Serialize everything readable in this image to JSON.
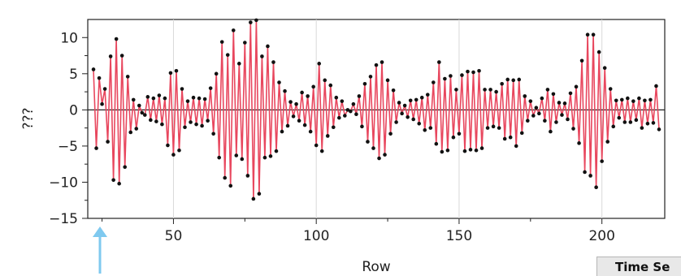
{
  "chart_data": {
    "type": "line",
    "title": "",
    "xlabel": "Row",
    "ylabel": "???",
    "xlim": [
      20,
      222
    ],
    "ylim": [
      -15,
      12.5
    ],
    "xticks": [
      50,
      100,
      150,
      200
    ],
    "yticks": [
      10,
      5,
      0,
      -5,
      -10,
      -15
    ],
    "ytick_labels": [
      "10",
      "5",
      "0",
      "−5",
      "−10",
      "−15"
    ],
    "grid": "vertical",
    "reference_line_y": 0,
    "line_color": "#e8475e",
    "marker_color": "#111111",
    "arrow_color": "#7fc9ef",
    "series": [
      {
        "x": [
          22,
          23,
          24,
          25,
          26,
          27,
          28,
          29,
          30,
          31,
          32,
          33,
          34,
          35,
          36,
          37,
          38,
          39,
          40,
          41,
          42,
          43,
          44,
          45,
          46,
          47,
          48,
          49,
          50,
          51,
          52,
          53,
          54,
          55,
          56,
          57,
          58,
          59,
          60,
          61,
          62,
          63,
          64,
          65,
          66,
          67,
          68,
          69,
          70,
          71,
          72,
          73,
          74,
          75,
          76,
          77,
          78,
          79,
          80,
          81,
          82,
          83,
          84,
          85,
          86,
          87,
          88,
          89,
          90,
          91,
          92,
          93,
          94,
          95,
          96,
          97,
          98,
          99,
          100,
          101,
          102,
          103,
          104,
          105,
          106,
          107,
          108,
          109,
          110,
          111,
          112,
          113,
          114,
          115,
          116,
          117,
          118,
          119,
          120,
          121,
          122,
          123,
          124,
          125,
          126,
          127,
          128,
          129,
          130,
          131,
          132,
          133,
          134,
          135,
          136,
          137,
          138,
          139,
          140,
          141,
          142,
          143,
          144,
          145,
          146,
          147,
          148,
          149,
          150,
          151,
          152,
          153,
          154,
          155,
          156,
          157,
          158,
          159,
          160,
          161,
          162,
          163,
          164,
          165,
          166,
          167,
          168,
          169,
          170,
          171,
          172,
          173,
          174,
          175,
          176,
          177,
          178,
          179,
          180,
          181,
          182,
          183,
          184,
          185,
          186,
          187,
          188,
          189,
          190,
          191,
          192,
          193,
          194,
          195,
          196,
          197,
          198,
          199,
          200,
          201,
          202,
          203,
          204,
          205,
          206,
          207,
          208,
          209,
          210,
          211,
          212,
          213,
          214,
          215,
          216,
          217,
          218,
          219,
          220
        ],
        "y": [
          5.6,
          -5.3,
          4.4,
          0.8,
          2.9,
          -4.4,
          7.4,
          -9.7,
          9.8,
          -10.2,
          7.5,
          -7.9,
          4.6,
          -3.1,
          1.4,
          -2.6,
          0.6,
          -0.4,
          -0.7,
          1.8,
          -1.4,
          1.6,
          -1.6,
          2.0,
          -2.0,
          1.6,
          -4.9,
          5.1,
          -6.2,
          5.4,
          -5.6,
          2.9,
          -2.4,
          1.2,
          -1.7,
          1.7,
          -2.0,
          1.6,
          -2.2,
          1.5,
          -1.5,
          3.0,
          -3.3,
          5.0,
          -6.6,
          9.4,
          -9.4,
          7.6,
          -10.5,
          11.0,
          -6.3,
          6.4,
          -6.8,
          9.3,
          -9.1,
          12.1,
          -12.3,
          12.4,
          -11.6,
          7.4,
          -6.6,
          8.8,
          -6.4,
          6.6,
          -5.7,
          3.8,
          -3.0,
          2.6,
          -2.2,
          1.1,
          -0.9,
          0.8,
          -1.5,
          2.4,
          -2.1,
          1.9,
          -3.0,
          3.2,
          -4.9,
          6.4,
          -5.7,
          4.1,
          -3.6,
          3.4,
          -2.4,
          1.7,
          -1.1,
          1.2,
          -0.8,
          0.0,
          -0.2,
          0.8,
          -0.6,
          1.9,
          -2.3,
          3.6,
          -4.4,
          4.6,
          -5.3,
          6.2,
          -6.7,
          6.6,
          -6.2,
          4.1,
          -3.3,
          2.7,
          -1.7,
          1.0,
          -0.5,
          0.6,
          -1.0,
          1.3,
          -1.3,
          1.4,
          -1.9,
          1.7,
          -2.8,
          2.1,
          -2.5,
          3.8,
          -4.7,
          6.6,
          -5.8,
          4.3,
          -5.6,
          4.7,
          -3.8,
          2.8,
          -3.3,
          4.8,
          -5.7,
          5.3,
          -5.5,
          5.2,
          -5.6,
          5.4,
          -5.3,
          2.8,
          -2.5,
          2.8,
          -2.3,
          2.5,
          -2.5,
          3.6,
          -4.0,
          4.2,
          -3.8,
          4.1,
          -5.0,
          4.2,
          -3.2,
          1.9,
          -1.5,
          1.2,
          -0.8,
          0.3,
          -0.5,
          1.6,
          -1.5,
          2.8,
          -3.0,
          2.2,
          -1.7,
          1.0,
          -0.7,
          0.9,
          -1.3,
          2.3,
          -2.6,
          3.2,
          -4.6,
          6.8,
          -8.6,
          10.4,
          -9.1,
          10.4,
          -10.7,
          8.0,
          -7.1,
          5.8,
          -4.4,
          2.9,
          -2.3,
          1.3,
          -1.1,
          1.4,
          -1.7,
          1.6,
          -1.7,
          1.2,
          -1.4,
          1.6,
          -2.5,
          1.3,
          -1.9,
          1.4,
          -1.8,
          3.3,
          -2.7
        ]
      }
    ]
  },
  "overlay": {
    "partial_label": "Time Se"
  }
}
